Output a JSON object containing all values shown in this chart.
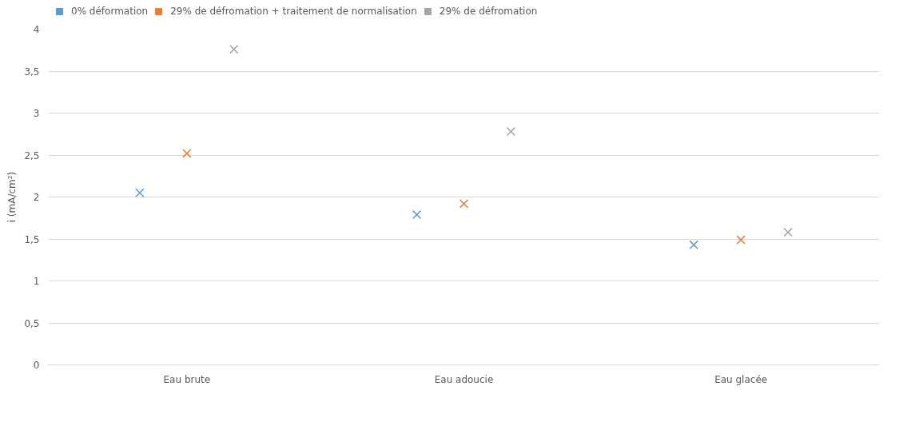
{
  "chart_data": {
    "type": "scatter",
    "ylabel": "i (mA/cm²)",
    "categories": [
      "Eau brute",
      "Eau adoucie",
      "Eau glacée"
    ],
    "series": [
      {
        "name": "0% déformation",
        "color": "#5b9bd5",
        "values": [
          2.05,
          1.79,
          1.43
        ]
      },
      {
        "name": "29% de défromation + traitement de normalisation",
        "color": "#ed7d31",
        "values": [
          2.52,
          1.92,
          1.49
        ]
      },
      {
        "name": "29% de défromation",
        "color": "#a5a5a5",
        "values": [
          3.76,
          2.78,
          1.58
        ]
      }
    ],
    "ylim": [
      0,
      4
    ],
    "yticks": [
      0,
      {
        "value": 0.5,
        "label": "0,5"
      },
      1,
      {
        "value": 1.5,
        "label": "1,5"
      },
      2,
      {
        "value": 2.5,
        "label": "2,5"
      },
      3,
      {
        "value": 3.5,
        "label": "3,5"
      },
      4
    ],
    "grid": "y",
    "legend": "top",
    "marker": "cross"
  }
}
